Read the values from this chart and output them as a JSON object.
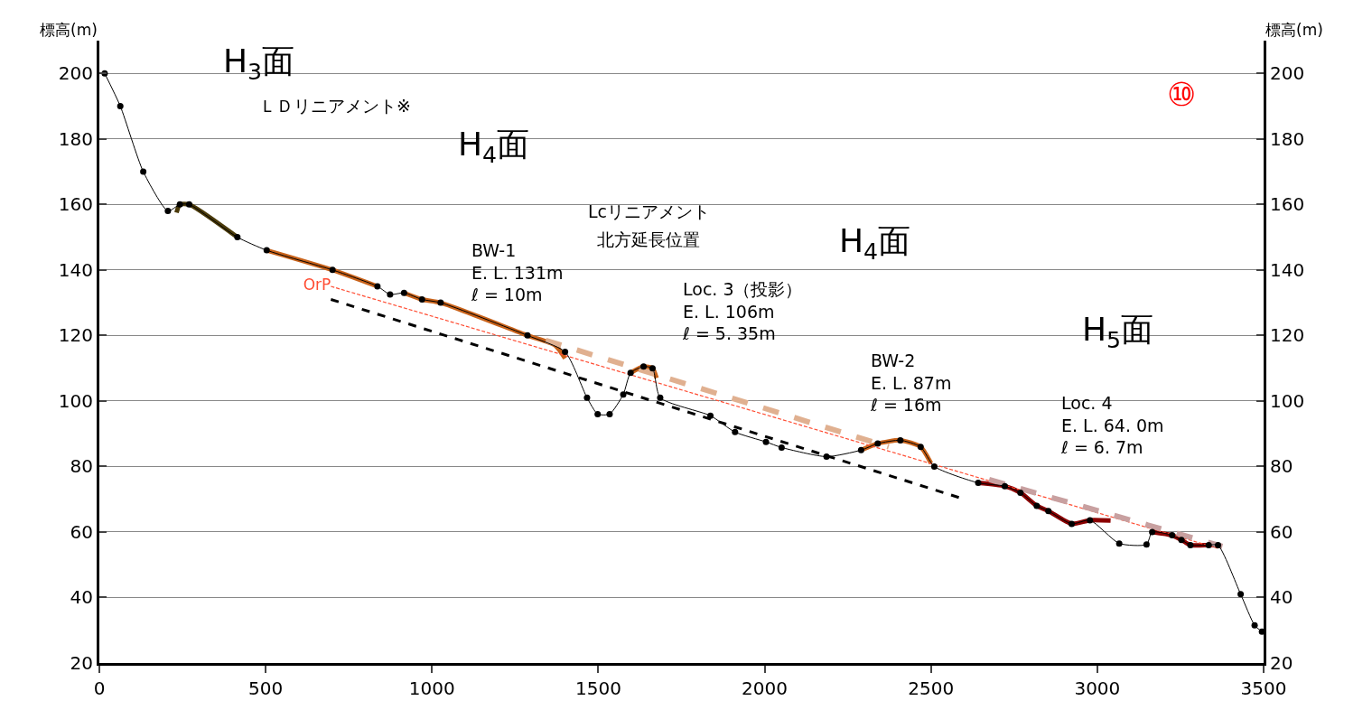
{
  "chart_data": {
    "type": "line",
    "ylabel": "標高(m)",
    "y2label": "標高(m)",
    "xlim": [
      0,
      3500
    ],
    "xticks": [
      0,
      500,
      1000,
      1500,
      2000,
      2500,
      3000,
      3500
    ],
    "ylim": [
      20,
      210
    ],
    "yticks": [
      20,
      40,
      60,
      80,
      100,
      120,
      140,
      160,
      180,
      200
    ],
    "y2lim": [
      20,
      210
    ],
    "y2ticks": [
      20,
      40,
      60,
      80,
      100,
      120,
      140,
      160,
      180,
      200
    ],
    "grid": "y",
    "legend": false,
    "series": [
      {
        "color": "#000000",
        "marker": "circle",
        "line_style": "solid",
        "x": [
          16,
          63,
          132,
          206,
          242,
          270,
          415,
          503,
          701,
          836,
          874,
          916,
          970,
          1026,
          1287,
          1400,
          1466,
          1498,
          1534,
          1575,
          1597,
          1636,
          1663,
          1686,
          1837,
          1911,
          2004,
          2051,
          2186,
          2290,
          2340,
          2408,
          2469,
          2510,
          2642,
          2722,
          2769,
          2818,
          2853,
          2923,
          2978,
          3066,
          3148,
          3165,
          3225,
          3253,
          3280,
          3335,
          3363,
          3431,
          3473,
          3495
        ],
        "values": [
          200,
          190,
          170,
          158,
          160,
          160,
          150,
          146,
          140,
          135,
          132.5,
          133,
          131,
          130,
          120,
          115,
          101,
          96,
          96,
          102,
          108.6,
          110.5,
          110,
          101,
          95.5,
          90.5,
          87.5,
          85.8,
          83,
          85,
          87,
          88,
          86,
          80,
          75,
          74,
          72,
          68,
          66.4,
          62.5,
          63.6,
          56.5,
          56.2,
          60,
          59,
          57.6,
          56,
          56,
          56,
          41,
          31.5,
          29.6
        ]
      },
      {
        "color": "#4a3a0a",
        "marker": "none",
        "line_style": "solid",
        "x": [
          232,
          242,
          270,
          415
        ],
        "values": [
          157.5,
          160,
          160,
          150
        ]
      },
      {
        "color": "#c8621a",
        "marker": "none",
        "line_style": "solid",
        "x": [
          503,
          701,
          836
        ],
        "values": [
          146,
          140,
          135
        ]
      },
      {
        "color": "#c8621a",
        "marker": "none",
        "line_style": "solid",
        "x": [
          916,
          970,
          1026,
          1287,
          1370,
          1400
        ],
        "values": [
          133,
          131,
          130,
          120,
          117,
          113
        ]
      },
      {
        "color": "#c8621a",
        "marker": "none",
        "line_style": "solid",
        "x": [
          1597,
          1636,
          1663,
          1675
        ],
        "values": [
          108.6,
          110.5,
          110,
          107
        ]
      },
      {
        "color": "#c8621a",
        "marker": "none",
        "line_style": "solid",
        "x": [
          2290,
          2340,
          2408,
          2469,
          2500
        ],
        "values": [
          85,
          87,
          88,
          86,
          81
        ]
      },
      {
        "color": "#8b0000",
        "marker": "none",
        "line_style": "solid",
        "x": [
          2642,
          2722,
          2769,
          2818,
          2853,
          2923,
          2978,
          3040
        ],
        "values": [
          75,
          74,
          72,
          68,
          66.4,
          62.5,
          63.6,
          63.5
        ]
      },
      {
        "color": "#8b0000",
        "marker": "none",
        "line_style": "solid",
        "x": [
          3165,
          3225,
          3253,
          3280,
          3335,
          3363
        ],
        "values": [
          60,
          59,
          57.6,
          56,
          56,
          56
        ]
      },
      {
        "name": "OrP",
        "color": "#ff4d33",
        "marker": "none",
        "line_style": "dashed",
        "x": [
          696,
          3363
        ],
        "values": [
          135,
          55
        ]
      },
      {
        "color": "#000000",
        "marker": "none",
        "line_style": "dashed",
        "x": [
          696,
          2585
        ],
        "values": [
          131,
          70.5
        ]
      },
      {
        "color": "#e0b090",
        "marker": "none",
        "line_style": "dashed",
        "x": [
          1342,
          2373
        ],
        "values": [
          118.5,
          86
        ]
      },
      {
        "color": "#c8a0a0",
        "marker": "none",
        "line_style": "dashed",
        "x": [
          2675,
          3376
        ],
        "values": [
          76,
          55.6
        ]
      }
    ],
    "annotations": [
      "H$_{3}$面",
      "ＬＤリニアメント※",
      "H$_{4}$面",
      "BW-1\nE. L. 131m\nℓ = 10m",
      "Lcリニアメント",
      "北方延長位置",
      "H$_{4}$面",
      "Loc. 3（投影）\nE. L. 106m\nℓ = 5. 35m",
      "H$_{5}$面",
      "BW-2\nE. L. 87m\nℓ = 16m",
      "Loc. 4\nE. L. 64. 0m\nℓ = 6. 7m",
      "⑩"
    ]
  }
}
